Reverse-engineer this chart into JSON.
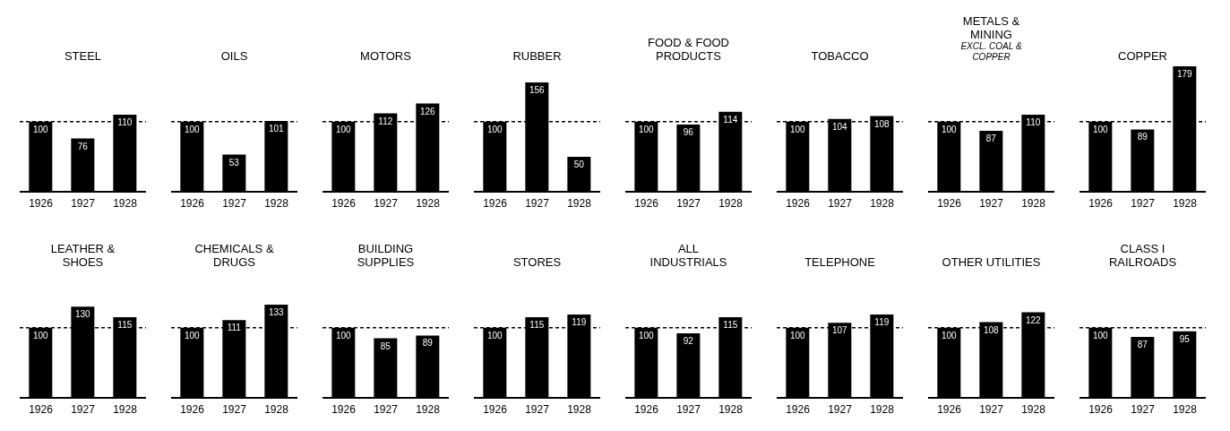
{
  "chart_data": [
    {
      "type": "bar",
      "title": "STEEL",
      "categories": [
        "1926",
        "1927",
        "1928"
      ],
      "values": [
        100,
        76,
        110
      ],
      "color": "#000000",
      "data_labels": true,
      "tick_labels": "x",
      "ref_lines": [
        {
          "axis": "y",
          "value": 100,
          "line_style": "dashed",
          "color": "#000000"
        }
      ]
    },
    {
      "type": "bar",
      "title": "OILS",
      "categories": [
        "1926",
        "1927",
        "1928"
      ],
      "values": [
        100,
        53,
        101
      ],
      "color": "#000000",
      "data_labels": true,
      "tick_labels": "x",
      "ref_lines": [
        {
          "axis": "y",
          "value": 100,
          "line_style": "dashed",
          "color": "#000000"
        }
      ]
    },
    {
      "type": "bar",
      "title": "MOTORS",
      "categories": [
        "1926",
        "1927",
        "1928"
      ],
      "values": [
        100,
        112,
        126
      ],
      "color": "#000000",
      "data_labels": true,
      "tick_labels": "x",
      "ref_lines": [
        {
          "axis": "y",
          "value": 100,
          "line_style": "dashed",
          "color": "#000000"
        }
      ]
    },
    {
      "type": "bar",
      "title": "RUBBER",
      "categories": [
        "1926",
        "1927",
        "1928"
      ],
      "values": [
        100,
        156,
        50
      ],
      "color": "#000000",
      "data_labels": true,
      "tick_labels": "x",
      "ref_lines": [
        {
          "axis": "y",
          "value": 100,
          "line_style": "dashed",
          "color": "#000000"
        }
      ]
    },
    {
      "type": "bar",
      "title": "FOOD & FOOD PRODUCTS",
      "categories": [
        "1926",
        "1927",
        "1928"
      ],
      "values": [
        100,
        96,
        114
      ],
      "color": "#000000",
      "data_labels": true,
      "tick_labels": "x",
      "ref_lines": [
        {
          "axis": "y",
          "value": 100,
          "line_style": "dashed",
          "color": "#000000"
        }
      ]
    },
    {
      "type": "bar",
      "title": "TOBACCO",
      "categories": [
        "1926",
        "1927",
        "1928"
      ],
      "values": [
        100,
        104,
        108
      ],
      "color": "#000000",
      "data_labels": true,
      "tick_labels": "x",
      "ref_lines": [
        {
          "axis": "y",
          "value": 100,
          "line_style": "dashed",
          "color": "#000000"
        }
      ]
    },
    {
      "type": "bar",
      "title": "METALS & MINING",
      "subtitle": "EXCL. COAL & COPPER",
      "categories": [
        "1926",
        "1927",
        "1928"
      ],
      "values": [
        100,
        87,
        110
      ],
      "color": "#000000",
      "data_labels": true,
      "tick_labels": "x",
      "ref_lines": [
        {
          "axis": "y",
          "value": 100,
          "line_style": "dashed",
          "color": "#000000"
        }
      ]
    },
    {
      "type": "bar",
      "title": "COPPER",
      "categories": [
        "1926",
        "1927",
        "1928"
      ],
      "values": [
        100,
        89,
        179
      ],
      "color": "#000000",
      "data_labels": true,
      "tick_labels": "x",
      "ref_lines": [
        {
          "axis": "y",
          "value": 100,
          "line_style": "dashed",
          "color": "#000000"
        }
      ]
    },
    {
      "type": "bar",
      "title": "LEATHER & SHOES",
      "categories": [
        "1926",
        "1927",
        "1928"
      ],
      "values": [
        100,
        130,
        115
      ],
      "color": "#000000",
      "data_labels": true,
      "tick_labels": "x",
      "ref_lines": [
        {
          "axis": "y",
          "value": 100,
          "line_style": "dashed",
          "color": "#000000"
        }
      ]
    },
    {
      "type": "bar",
      "title": "CHEMICALS & DRUGS",
      "categories": [
        "1926",
        "1927",
        "1928"
      ],
      "values": [
        100,
        111,
        133
      ],
      "color": "#000000",
      "data_labels": true,
      "tick_labels": "x",
      "ref_lines": [
        {
          "axis": "y",
          "value": 100,
          "line_style": "dashed",
          "color": "#000000"
        }
      ]
    },
    {
      "type": "bar",
      "title": "BUILDING SUPPLIES",
      "categories": [
        "1926",
        "1927",
        "1928"
      ],
      "values": [
        100,
        85,
        89
      ],
      "color": "#000000",
      "data_labels": true,
      "tick_labels": "x",
      "ref_lines": [
        {
          "axis": "y",
          "value": 100,
          "line_style": "dashed",
          "color": "#000000"
        }
      ]
    },
    {
      "type": "bar",
      "title": "STORES",
      "categories": [
        "1926",
        "1927",
        "1928"
      ],
      "values": [
        100,
        115,
        119
      ],
      "color": "#000000",
      "data_labels": true,
      "tick_labels": "x",
      "ref_lines": [
        {
          "axis": "y",
          "value": 100,
          "line_style": "dashed",
          "color": "#000000"
        }
      ]
    },
    {
      "type": "bar",
      "title": "ALL INDUSTRIALS",
      "categories": [
        "1926",
        "1927",
        "1928"
      ],
      "values": [
        100,
        92,
        115
      ],
      "color": "#000000",
      "data_labels": true,
      "tick_labels": "x",
      "ref_lines": [
        {
          "axis": "y",
          "value": 100,
          "line_style": "dashed",
          "color": "#000000"
        }
      ]
    },
    {
      "type": "bar",
      "title": "TELEPHONE",
      "categories": [
        "1926",
        "1927",
        "1928"
      ],
      "values": [
        100,
        107,
        119
      ],
      "color": "#000000",
      "data_labels": true,
      "tick_labels": "x",
      "ref_lines": [
        {
          "axis": "y",
          "value": 100,
          "line_style": "dashed",
          "color": "#000000"
        }
      ]
    },
    {
      "type": "bar",
      "title": "OTHER UTILITIES",
      "categories": [
        "1926",
        "1927",
        "1928"
      ],
      "values": [
        100,
        108,
        122
      ],
      "color": "#000000",
      "data_labels": true,
      "tick_labels": "x",
      "ref_lines": [
        {
          "axis": "y",
          "value": 100,
          "line_style": "dashed",
          "color": "#000000"
        }
      ]
    },
    {
      "type": "bar",
      "title": "CLASS I RAILROADS",
      "categories": [
        "1926",
        "1927",
        "1928"
      ],
      "values": [
        100,
        87,
        95
      ],
      "color": "#000000",
      "data_labels": true,
      "tick_labels": "x",
      "ref_lines": [
        {
          "axis": "y",
          "value": 100,
          "line_style": "dashed",
          "color": "#000000"
        }
      ]
    }
  ]
}
